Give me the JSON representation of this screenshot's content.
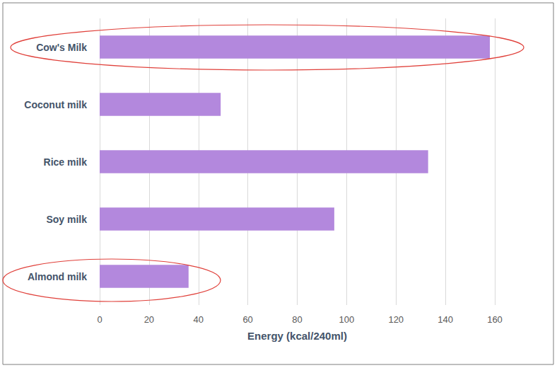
{
  "chart_data": {
    "type": "bar",
    "orientation": "horizontal",
    "categories": [
      "Cow's Milk",
      "Coconut milk",
      "Rice milk",
      "Soy milk",
      "Almond milk"
    ],
    "values": [
      158,
      49,
      133,
      95,
      36
    ],
    "color": "#b388dd",
    "xlabel": "Energy (kcal/240ml)",
    "xlim": [
      0,
      160
    ],
    "xticks": [
      0,
      20,
      40,
      60,
      80,
      100,
      120,
      140,
      160
    ],
    "grid": true
  }
}
